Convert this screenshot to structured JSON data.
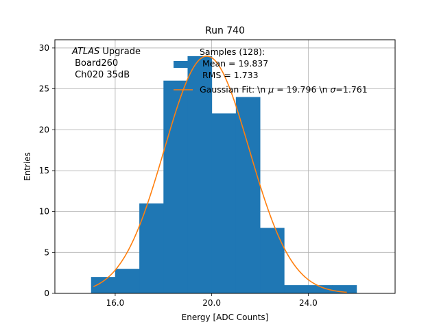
{
  "chart_data": {
    "type": "bar",
    "title": "Run 740",
    "xlabel": "Energy [ADC Counts]",
    "ylabel": "Entries",
    "xlim": [
      13.5,
      27.6
    ],
    "ylim": [
      0,
      31
    ],
    "grid": true,
    "x_ticks": [
      16.0,
      20.0,
      24.0
    ],
    "x_tick_labels": [
      "16.0",
      "20.0",
      "24.0"
    ],
    "y_ticks": [
      0,
      5,
      10,
      15,
      20,
      25,
      30
    ],
    "y_tick_labels": [
      "0",
      "5",
      "10",
      "15",
      "20",
      "25",
      "30"
    ],
    "histogram": {
      "name": "Samples",
      "color": "#1f77b4",
      "bin_edges": [
        15,
        16,
        17,
        18,
        19,
        20,
        21,
        22,
        23,
        24,
        25,
        26
      ],
      "counts": [
        2,
        3,
        11,
        26,
        29,
        22,
        24,
        8,
        1,
        1,
        1
      ]
    },
    "fit": {
      "name": "Gaussian Fit",
      "color": "#ff7f0e",
      "mu": 19.796,
      "sigma": 1.761,
      "amplitude": 29.0,
      "x_range": [
        15.1,
        25.6
      ]
    },
    "legend": {
      "placement": "top-right",
      "entries": [
        {
          "label": "Samples (128):\n Mean = 19.837\n RMS = 1.733",
          "kind": "patch",
          "color": "#1f77b4"
        },
        {
          "label": "Gaussian Fit: \\n $\\mu$ = 19.796 \\n $\\sigma$=1.761",
          "kind": "line",
          "color": "#ff7f0e"
        }
      ],
      "samples_lines": [
        "Samples (128):",
        " Mean = 19.837",
        " RMS = 1.733"
      ],
      "fit_text_prefix": "Gaussian Fit: \\n ",
      "mu_symbol": "μ",
      "mu_text": " = 19.796 \\n ",
      "sigma_symbol": "σ",
      "sigma_text": "=1.761"
    },
    "annotation": {
      "atlas": "ATLAS",
      "upgrade": " Upgrade",
      "board": " Board260",
      "channel": " Ch020 35dB"
    }
  }
}
